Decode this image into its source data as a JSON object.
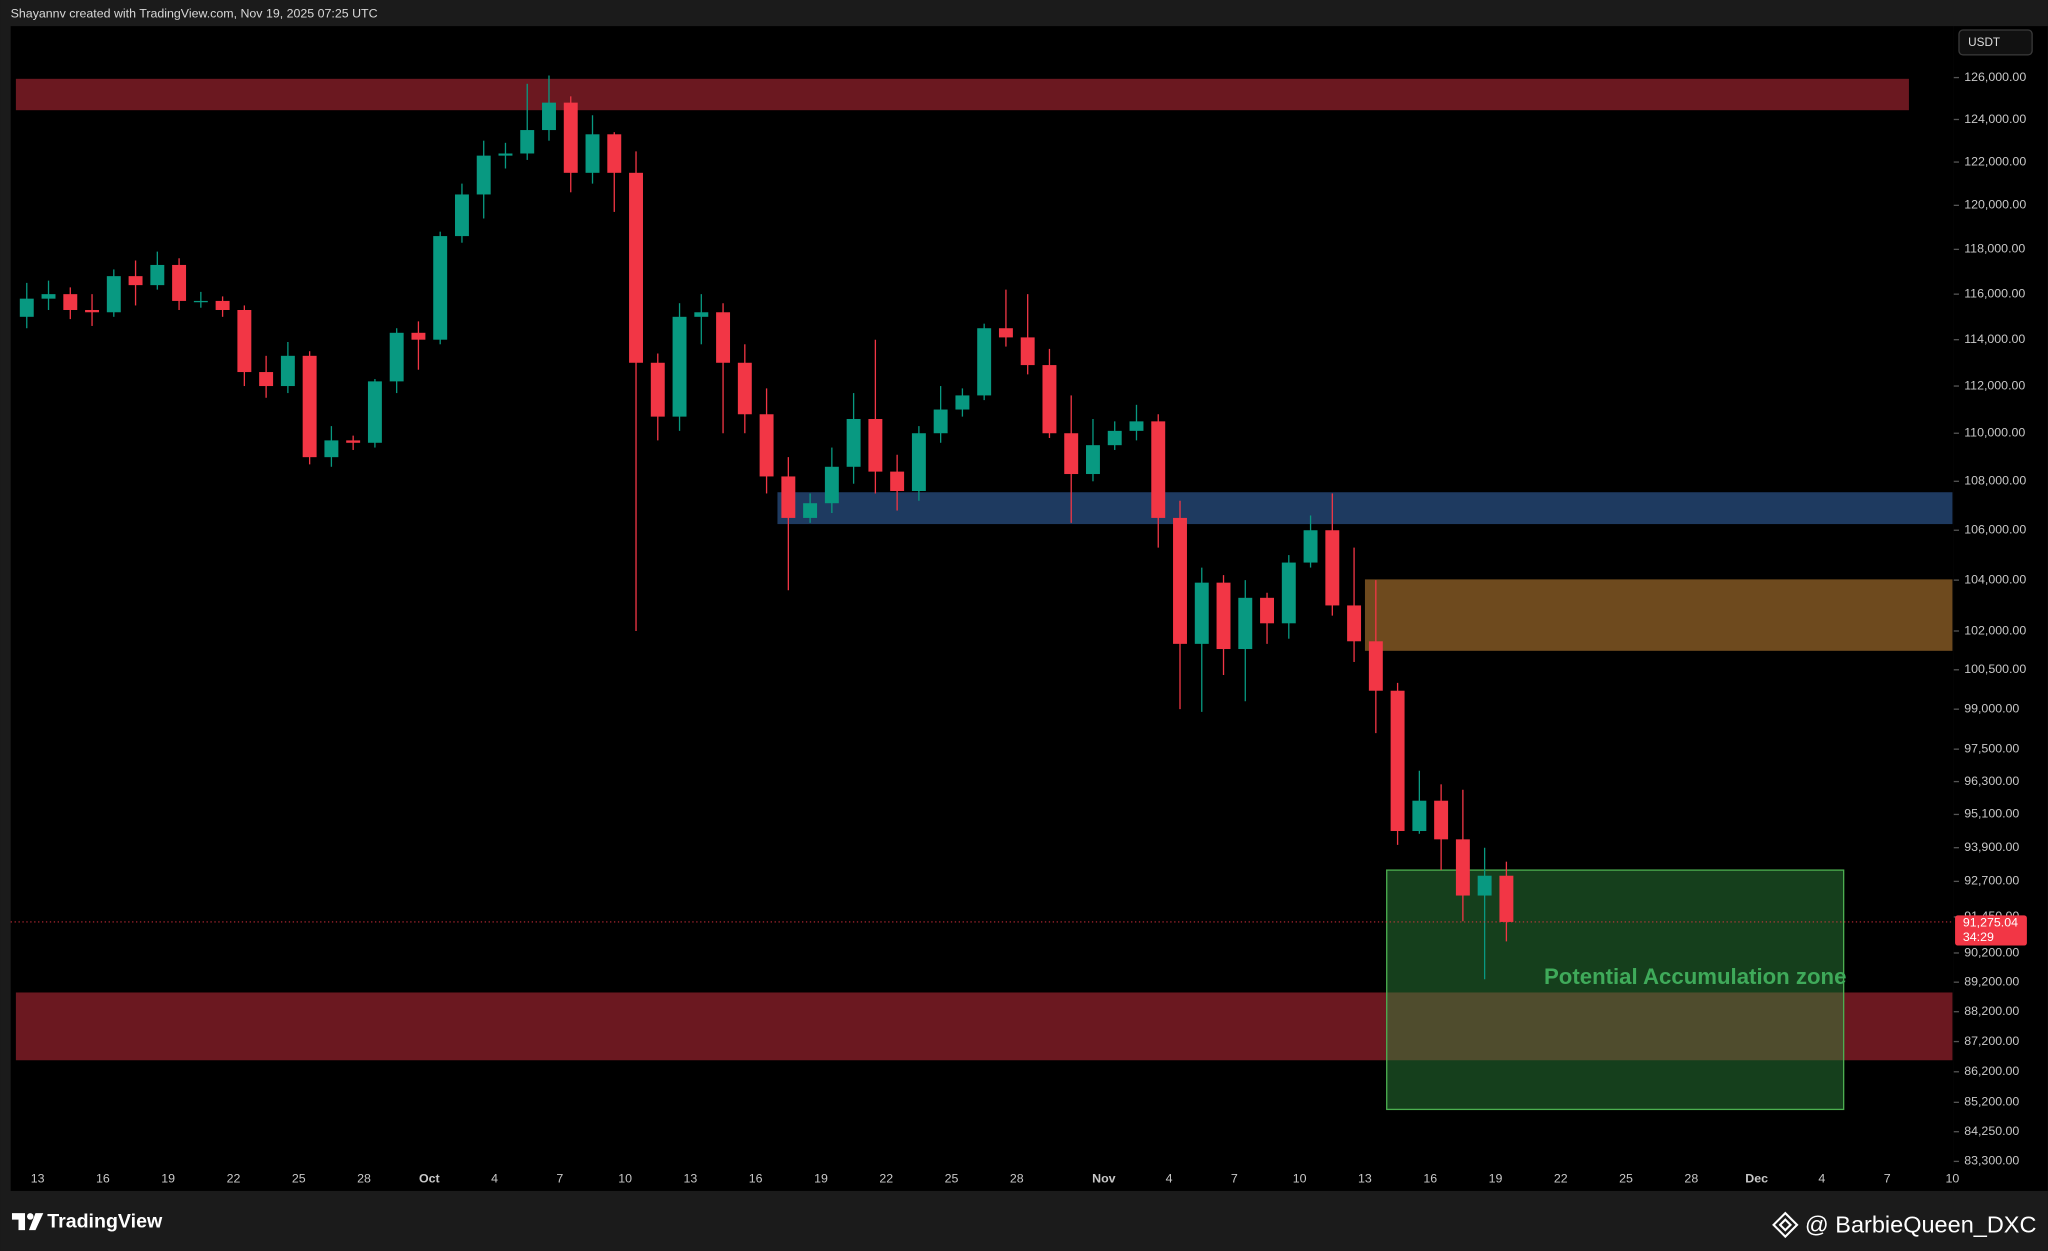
{
  "header": "Shayannv created with TradingView.com, Nov 19, 2025 07:25 UTC",
  "footer": {
    "brand": "TradingView",
    "author": "@ BarbieQueen_DXC"
  },
  "chart_data": {
    "type": "candlestick",
    "currency": "USDT",
    "log_scale": true,
    "up_color": "#089981",
    "down_color": "#f23645",
    "ylim": [
      83150,
      128500
    ],
    "yticks": [
      {
        "value": 126000,
        "label": "126,000.00"
      },
      {
        "value": 124000,
        "label": "124,000.00"
      },
      {
        "value": 122000,
        "label": "122,000.00"
      },
      {
        "value": 120000,
        "label": "120,000.00"
      },
      {
        "value": 118000,
        "label": "118,000.00"
      },
      {
        "value": 116000,
        "label": "116,000.00"
      },
      {
        "value": 114000,
        "label": "114,000.00"
      },
      {
        "value": 112000,
        "label": "112,000.00"
      },
      {
        "value": 110000,
        "label": "110,000.00"
      },
      {
        "value": 108000,
        "label": "108,000.00"
      },
      {
        "value": 106000,
        "label": "106,000.00"
      },
      {
        "value": 104000,
        "label": "104,000.00"
      },
      {
        "value": 102000,
        "label": "102,000.00"
      },
      {
        "value": 100500,
        "label": "100,500.00"
      },
      {
        "value": 99000,
        "label": "99,000.00"
      },
      {
        "value": 97500,
        "label": "97,500.00"
      },
      {
        "value": 96300,
        "label": "96,300.00"
      },
      {
        "value": 95100,
        "label": "95,100.00"
      },
      {
        "value": 93900,
        "label": "93,900.00"
      },
      {
        "value": 92700,
        "label": "92,700.00"
      },
      {
        "value": 91450,
        "label": "91,450.00"
      },
      {
        "value": 90200,
        "label": "90,200.00"
      },
      {
        "value": 89200,
        "label": "89,200.00"
      },
      {
        "value": 88200,
        "label": "88,200.00"
      },
      {
        "value": 87200,
        "label": "87,200.00"
      },
      {
        "value": 86200,
        "label": "86,200.00"
      },
      {
        "value": 85200,
        "label": "85,200.00"
      },
      {
        "value": 84250,
        "label": "84,250.00"
      },
      {
        "value": 83300,
        "label": "83,300.00"
      }
    ],
    "xlim": [
      "09-12",
      "12-10"
    ],
    "xticks": [
      {
        "value": "09-13",
        "label": "13"
      },
      {
        "value": "09-16",
        "label": "16"
      },
      {
        "value": "09-19",
        "label": "19"
      },
      {
        "value": "09-22",
        "label": "22"
      },
      {
        "value": "09-25",
        "label": "25"
      },
      {
        "value": "09-28",
        "label": "28"
      },
      {
        "value": "10-01",
        "label": "Oct"
      },
      {
        "value": "10-04",
        "label": "4"
      },
      {
        "value": "10-07",
        "label": "7"
      },
      {
        "value": "10-10",
        "label": "10"
      },
      {
        "value": "10-13",
        "label": "13"
      },
      {
        "value": "10-16",
        "label": "16"
      },
      {
        "value": "10-19",
        "label": "19"
      },
      {
        "value": "10-22",
        "label": "22"
      },
      {
        "value": "10-25",
        "label": "25"
      },
      {
        "value": "10-28",
        "label": "28"
      },
      {
        "value": "11-01",
        "label": "Nov"
      },
      {
        "value": "11-04",
        "label": "4"
      },
      {
        "value": "11-07",
        "label": "7"
      },
      {
        "value": "11-10",
        "label": "10"
      },
      {
        "value": "11-13",
        "label": "13"
      },
      {
        "value": "11-16",
        "label": "16"
      },
      {
        "value": "11-19",
        "label": "19"
      },
      {
        "value": "11-22",
        "label": "22"
      },
      {
        "value": "11-25",
        "label": "25"
      },
      {
        "value": "11-28",
        "label": "28"
      },
      {
        "value": "12-01",
        "label": "Dec"
      },
      {
        "value": "12-04",
        "label": "4"
      },
      {
        "value": "12-07",
        "label": "7"
      },
      {
        "value": "12-10",
        "label": "10"
      }
    ],
    "x": [
      "09-12",
      "09-13",
      "09-14",
      "09-15",
      "09-16",
      "09-17",
      "09-18",
      "09-19",
      "09-20",
      "09-21",
      "09-22",
      "09-23",
      "09-24",
      "09-25",
      "09-26",
      "09-27",
      "09-28",
      "09-29",
      "09-30",
      "10-01",
      "10-02",
      "10-03",
      "10-04",
      "10-05",
      "10-06",
      "10-07",
      "10-08",
      "10-09",
      "10-10",
      "10-11",
      "10-12",
      "10-13",
      "10-14",
      "10-15",
      "10-16",
      "10-17",
      "10-18",
      "10-19",
      "10-20",
      "10-21",
      "10-22",
      "10-23",
      "10-24",
      "10-25",
      "10-26",
      "10-27",
      "10-28",
      "10-29",
      "10-30",
      "10-31",
      "11-01",
      "11-02",
      "11-03",
      "11-04",
      "11-05",
      "11-06",
      "11-07",
      "11-08",
      "11-09",
      "11-10",
      "11-11",
      "11-12",
      "11-13",
      "11-14",
      "11-15",
      "11-16",
      "11-17",
      "11-18",
      "11-19"
    ],
    "open": [
      115000,
      115800,
      116000,
      115300,
      115200,
      116800,
      116400,
      117300,
      115700,
      115700,
      115300,
      112600,
      112000,
      113300,
      109000,
      109700,
      109600,
      112200,
      114300,
      114000,
      118600,
      120500,
      122300,
      122400,
      123500,
      124800,
      121500,
      123300,
      121500,
      113000,
      110700,
      115000,
      115200,
      113000,
      110800,
      108200,
      106500,
      107100,
      108600,
      110600,
      108400,
      107600,
      110000,
      111000,
      111600,
      114500,
      114100,
      112900,
      110000,
      108300,
      109500,
      110100,
      110500,
      106500,
      101500,
      103900,
      101300,
      103300,
      102300,
      104700,
      106000,
      103000,
      101600,
      99700,
      94500,
      95600,
      94200,
      92200,
      92900
    ],
    "high": [
      116500,
      116600,
      116300,
      116000,
      117100,
      117500,
      117900,
      117600,
      116100,
      115900,
      115500,
      113300,
      113900,
      113500,
      110300,
      109900,
      112300,
      114500,
      114800,
      118800,
      121000,
      123000,
      122900,
      125700,
      126100,
      125100,
      124200,
      123400,
      122500,
      113400,
      115600,
      116000,
      115600,
      113800,
      111900,
      109000,
      107500,
      109400,
      111700,
      114000,
      109100,
      110300,
      112000,
      111900,
      114700,
      116200,
      116000,
      113600,
      111600,
      110600,
      110500,
      111200,
      110800,
      107200,
      104500,
      104200,
      104000,
      103500,
      105000,
      106600,
      107500,
      105300,
      104000,
      100000,
      96700,
      96200,
      96000,
      93900,
      93400
    ],
    "low": [
      114500,
      115300,
      114900,
      114600,
      115000,
      115500,
      116200,
      115300,
      115400,
      115000,
      112000,
      111500,
      111700,
      108700,
      108600,
      109300,
      109400,
      111700,
      112700,
      113800,
      118300,
      119400,
      121700,
      122100,
      123000,
      120600,
      121000,
      119700,
      102000,
      109700,
      110100,
      113800,
      110000,
      110000,
      107500,
      103600,
      106300,
      106700,
      107900,
      107500,
      106800,
      107200,
      109600,
      110700,
      111400,
      113700,
      112500,
      109800,
      106300,
      108000,
      109300,
      109700,
      105300,
      99000,
      98900,
      100300,
      99300,
      101500,
      101700,
      104500,
      102600,
      100800,
      98100,
      94000,
      94400,
      93100,
      91300,
      89300,
      90600
    ],
    "close": [
      115800,
      116000,
      115300,
      115200,
      116800,
      116400,
      117300,
      115700,
      115700,
      115300,
      112600,
      112000,
      113300,
      109000,
      109700,
      109600,
      112200,
      114300,
      114000,
      118600,
      120500,
      122300,
      122400,
      123500,
      124800,
      121500,
      123300,
      121500,
      113000,
      110700,
      115000,
      115200,
      113000,
      110800,
      108200,
      106500,
      107100,
      108600,
      110600,
      108400,
      107600,
      110000,
      111000,
      111600,
      114500,
      114100,
      112900,
      110000,
      108300,
      109500,
      110100,
      110500,
      106500,
      101500,
      103900,
      101300,
      103300,
      102300,
      104700,
      106000,
      103000,
      101600,
      99700,
      94500,
      95600,
      94200,
      92200,
      92900,
      91275.04
    ],
    "last_price": {
      "value": 91275.04,
      "label": "91,275.04"
    },
    "countdown": "34:29",
    "zones": [
      {
        "y": [
          124440,
          125940
        ],
        "x": [
          "09-12",
          "12-08"
        ],
        "color": "#6b1820"
      },
      {
        "y": [
          86580,
          88850
        ],
        "x": [
          "09-12",
          "12-10"
        ],
        "color": "#6b1820"
      },
      {
        "y": [
          106250,
          107550
        ],
        "x": [
          "10-17",
          "12-10"
        ],
        "color": "#1e3a60"
      },
      {
        "y": [
          101230,
          104030
        ],
        "x": [
          "11-13",
          "12-10"
        ],
        "color": "#6e4a1e"
      },
      {
        "y": [
          84970,
          93100
        ],
        "x": [
          "11-14",
          "12-05"
        ],
        "color": "#2e8b3e"
      }
    ],
    "annotation": "Potential Accumulation zone"
  }
}
